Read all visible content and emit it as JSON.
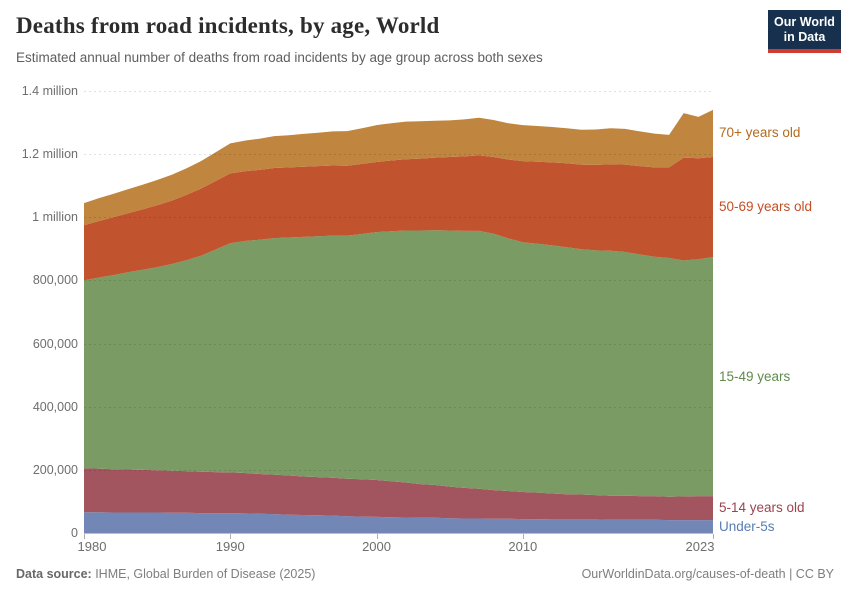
{
  "header": {
    "title": "Deaths from road incidents, by age, World",
    "subtitle": "Estimated annual number of deaths from road incidents by age group across both sexes",
    "logo": {
      "line1": "Our World",
      "line2": "in Data",
      "bg_color": "#16304d",
      "accent_color": "#cf3a31"
    }
  },
  "chart_data": {
    "type": "area",
    "stacked": true,
    "title": "Deaths from road incidents, by age, World",
    "xlabel": "",
    "ylabel": "",
    "xlim": [
      1980,
      2023
    ],
    "ylim": [
      0,
      1400000
    ],
    "grid": "dashed horizontal",
    "legend_position": "right, aligned to final band midpoints",
    "x": [
      1980,
      1981,
      1982,
      1983,
      1984,
      1985,
      1986,
      1987,
      1988,
      1989,
      1990,
      1991,
      1992,
      1993,
      1994,
      1995,
      1996,
      1997,
      1998,
      1999,
      2000,
      2001,
      2002,
      2003,
      2004,
      2005,
      2006,
      2007,
      2008,
      2009,
      2010,
      2011,
      2012,
      2013,
      2014,
      2015,
      2016,
      2017,
      2018,
      2019,
      2020,
      2021,
      2022,
      2023
    ],
    "series": [
      {
        "name": "Under-5s",
        "color": "#7287b5",
        "label_color": "#577db1",
        "values": [
          66000,
          66000,
          65000,
          65000,
          65000,
          65000,
          64000,
          64000,
          63000,
          63000,
          63000,
          62000,
          61000,
          60000,
          58000,
          57000,
          56000,
          55000,
          53000,
          52000,
          51000,
          50000,
          49000,
          48000,
          48000,
          47000,
          46000,
          46000,
          45000,
          45000,
          44000,
          44000,
          43000,
          43000,
          43000,
          43000,
          42000,
          42000,
          42000,
          42000,
          41000,
          41000,
          41000,
          41000
        ]
      },
      {
        "name": "5-14 years old",
        "color": "#a3555f",
        "label_color": "#9c4351",
        "values": [
          139000,
          138000,
          137000,
          136000,
          135000,
          134000,
          133000,
          132000,
          131000,
          130000,
          129000,
          128000,
          126000,
          125000,
          124000,
          122000,
          121000,
          120000,
          119000,
          118000,
          117000,
          114000,
          111000,
          107000,
          104000,
          100000,
          97000,
          94000,
          91000,
          88000,
          86000,
          84000,
          82000,
          80000,
          79000,
          77000,
          76000,
          76000,
          75000,
          75000,
          74000,
          75000,
          76000,
          76000
        ]
      },
      {
        "name": "15-49 years",
        "color": "#7b9b64",
        "label_color": "#5f8a4e",
        "values": [
          595000,
          605000,
          615000,
          625000,
          634000,
          643000,
          655000,
          668000,
          684000,
          705000,
          726000,
          735000,
          742000,
          749000,
          754000,
          759000,
          763000,
          767000,
          770000,
          777000,
          785000,
          792000,
          798000,
          803000,
          807000,
          811000,
          814000,
          817000,
          812000,
          800000,
          791000,
          788000,
          786000,
          782000,
          777000,
          775000,
          776000,
          772000,
          765000,
          758000,
          756000,
          747000,
          750000,
          757000
        ]
      },
      {
        "name": "50-69 years old",
        "color": "#c2532f",
        "label_color": "#c34f26",
        "values": [
          175000,
          179000,
          183000,
          187000,
          191000,
          196000,
          201000,
          207000,
          213000,
          217000,
          221000,
          221000,
          221000,
          222000,
          222000,
          222000,
          222000,
          222000,
          221000,
          222000,
          222000,
          224000,
          226000,
          228000,
          230000,
          233000,
          236000,
          239000,
          243000,
          250000,
          257000,
          260000,
          263000,
          266000,
          268000,
          271000,
          274000,
          277000,
          280000,
          283000,
          287000,
          326000,
          320000,
          317000
        ]
      },
      {
        "name": "70+ years old",
        "color": "#c0853e",
        "label_color": "#b36b1e",
        "values": [
          70000,
          72000,
          74000,
          76000,
          78000,
          80000,
          82000,
          84000,
          87000,
          91000,
          95000,
          97000,
          99000,
          101000,
          102000,
          104000,
          106000,
          108000,
          110000,
          113000,
          117000,
          118000,
          119000,
          118000,
          117000,
          116000,
          117000,
          119000,
          117000,
          115000,
          114000,
          113000,
          112000,
          111000,
          110000,
          112000,
          114000,
          113000,
          110000,
          107000,
          103000,
          141000,
          131000,
          149000
        ]
      }
    ],
    "y_ticks": [
      {
        "value": 0,
        "label": "0"
      },
      {
        "value": 200000,
        "label": "200,000"
      },
      {
        "value": 400000,
        "label": "400,000"
      },
      {
        "value": 600000,
        "label": "600,000"
      },
      {
        "value": 800000,
        "label": "800,000"
      },
      {
        "value": 1000000,
        "label": "1 million"
      },
      {
        "value": 1200000,
        "label": "1.2 million"
      },
      {
        "value": 1400000,
        "label": "1.4 million"
      }
    ],
    "x_ticks": [
      {
        "value": 1980,
        "label": "1980"
      },
      {
        "value": 1990,
        "label": "1990"
      },
      {
        "value": 2000,
        "label": "2000"
      },
      {
        "value": 2010,
        "label": "2010"
      },
      {
        "value": 2023,
        "label": "2023"
      }
    ]
  },
  "footer": {
    "source_label": "Data source:",
    "source_text": " IHME, Global Burden of Disease (2025)",
    "right_text": "OurWorldinData.org/causes-of-death | CC BY"
  }
}
